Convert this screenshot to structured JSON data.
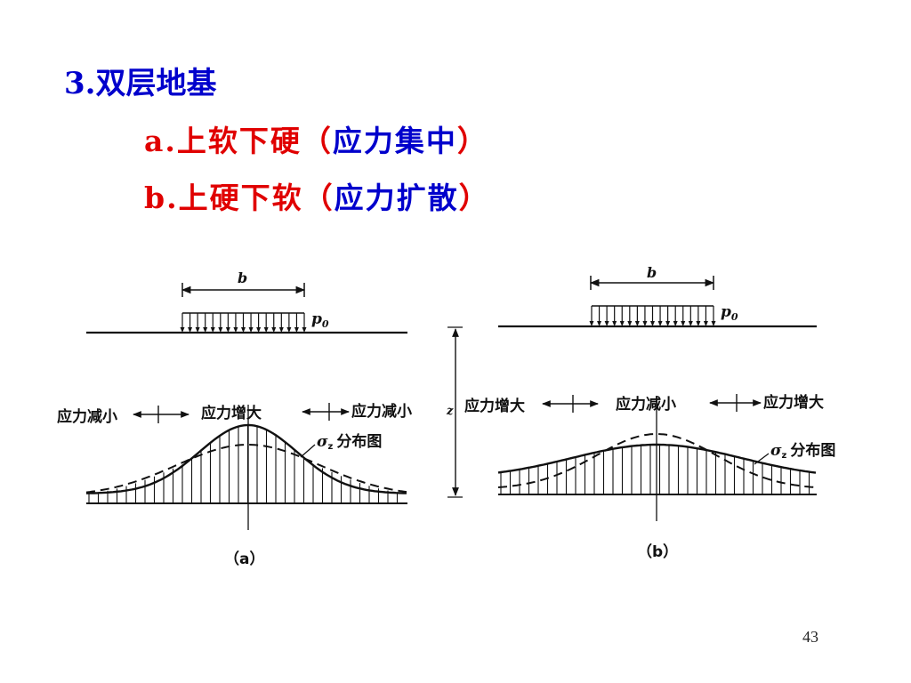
{
  "heading": {
    "number": "3.",
    "title": "双层地基"
  },
  "lines": [
    {
      "prefix": "a.",
      "main": "上软下硬",
      "paren_open": "（",
      "paren_text": "应力集中",
      "paren_close": "）"
    },
    {
      "prefix": "b.",
      "main": "上硬下软",
      "paren_open": "（",
      "paren_text": "应力扩散",
      "paren_close": "）"
    }
  ],
  "colors": {
    "heading": "#0000cc",
    "emphasis": "#e00000"
  },
  "figure": {
    "panel_a": {
      "width_symbol": "b",
      "load_symbol": "p",
      "load_sub": "0",
      "left_label": "应力减小",
      "center_label": "应力增大",
      "right_label": "应力减小",
      "dist_symbol": "σ",
      "dist_sub": "z",
      "dist_label": "分布图",
      "caption": "（a）"
    },
    "panel_b": {
      "width_symbol": "b",
      "load_symbol": "p",
      "load_sub": "0",
      "left_label": "应力增大",
      "center_label": "应力减小",
      "right_label": "应力增大",
      "dist_symbol": "σ",
      "dist_sub": "z",
      "dist_label": "分布图",
      "caption": "（b）"
    },
    "depth_symbol": "z"
  },
  "page_number": "43"
}
